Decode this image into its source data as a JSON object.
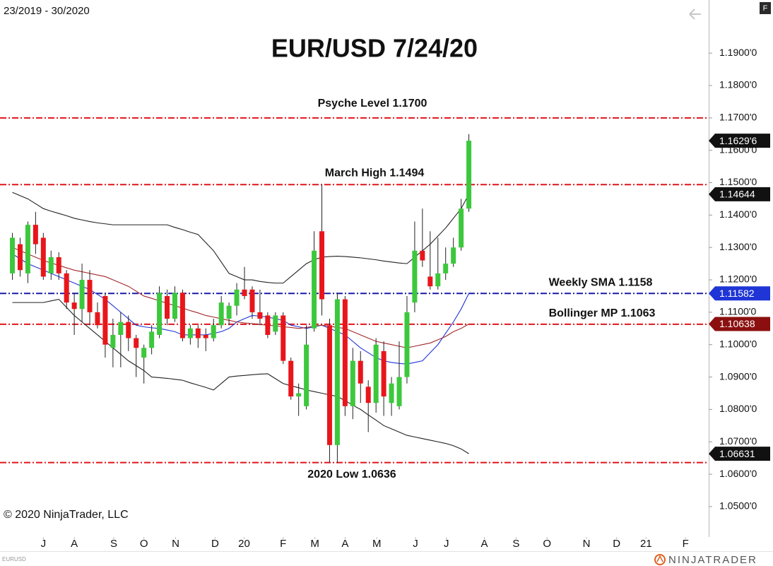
{
  "chart_data": {
    "type": "candlestick",
    "title": "EUR/USD 7/24/20",
    "range_label": "23/2019 - 30/2020",
    "copyright": "© 2020 NinjaTrader, LLC",
    "instrument": "EURUSD",
    "brand": "NINJATRADER",
    "panel_button": "F",
    "up_color": "#3cc83c",
    "down_color": "#e8161b",
    "xlim": [
      -1.6,
      90
    ],
    "xticks": [
      {
        "value": 4.0,
        "label": "J"
      },
      {
        "value": 8.0,
        "label": "A"
      },
      {
        "value": 13.1,
        "label": "S"
      },
      {
        "value": 17.0,
        "label": "O"
      },
      {
        "value": 21.1,
        "label": "N"
      },
      {
        "value": 26.2,
        "label": "D"
      },
      {
        "value": 29.95,
        "label": "20"
      },
      {
        "value": 35.0,
        "label": "F"
      },
      {
        "value": 39.1,
        "label": "M"
      },
      {
        "value": 43.0,
        "label": "A"
      },
      {
        "value": 47.1,
        "label": "M"
      },
      {
        "value": 52.1,
        "label": "J"
      },
      {
        "value": 56.1,
        "label": "J"
      },
      {
        "value": 61.0,
        "label": "A"
      },
      {
        "value": 65.1,
        "label": "S"
      },
      {
        "value": 69.1,
        "label": "O"
      },
      {
        "value": 74.2,
        "label": "N"
      },
      {
        "value": 78.1,
        "label": "D"
      },
      {
        "value": 81.9,
        "label": "21"
      },
      {
        "value": 87.0,
        "label": "F"
      }
    ],
    "ylim": [
      1.0406,
      1.2064
    ],
    "yticks": [
      {
        "value": 1.05,
        "label": "1.0500'0"
      },
      {
        "value": 1.06,
        "label": "1.0600'0"
      },
      {
        "value": 1.07,
        "label": "1.0700'0"
      },
      {
        "value": 1.08,
        "label": "1.0800'0"
      },
      {
        "value": 1.09,
        "label": "1.0900'0"
      },
      {
        "value": 1.1,
        "label": "1.1000'0"
      },
      {
        "value": 1.11,
        "label": "1.1100'0"
      },
      {
        "value": 1.12,
        "label": "1.1200'0"
      },
      {
        "value": 1.13,
        "label": "1.1300'0"
      },
      {
        "value": 1.14,
        "label": "1.1400'0"
      },
      {
        "value": 1.15,
        "label": "1.1500'0"
      },
      {
        "value": 1.16,
        "label": "1.1600'0"
      },
      {
        "value": 1.17,
        "label": "1.1700'0"
      },
      {
        "value": 1.18,
        "label": "1.1800'0"
      },
      {
        "value": 1.19,
        "label": "1.1900'0"
      }
    ],
    "ohlc": {
      "open": [
        1.122,
        1.131,
        1.122,
        1.137,
        1.133,
        1.122,
        1.127,
        1.122,
        1.113,
        1.111,
        1.12,
        1.11,
        1.115,
        1.099,
        1.103,
        1.107,
        1.102,
        1.096,
        1.099,
        1.103,
        1.115,
        1.108,
        1.116,
        1.102,
        1.105,
        1.103,
        1.102,
        1.106,
        1.108,
        1.112,
        1.117,
        1.117,
        1.11,
        1.109,
        1.104,
        1.109,
        1.095,
        1.084,
        1.081,
        1.105,
        1.135,
        1.106,
        1.069,
        1.114,
        1.081,
        1.095,
        1.087,
        1.082,
        1.098,
        1.082,
        1.081,
        1.09,
        1.113,
        1.129,
        1.121,
        1.118,
        1.122,
        1.125,
        1.13,
        1.142
      ],
      "high": [
        1.1345,
        1.133,
        1.138,
        1.141,
        1.1345,
        1.129,
        1.1285,
        1.123,
        1.116,
        1.125,
        1.123,
        1.113,
        1.116,
        1.108,
        1.11,
        1.109,
        1.103,
        1.1,
        1.106,
        1.118,
        1.117,
        1.118,
        1.117,
        1.106,
        1.106,
        1.105,
        1.108,
        1.115,
        1.113,
        1.119,
        1.124,
        1.118,
        1.117,
        1.11,
        1.11,
        1.11,
        1.096,
        1.088,
        1.106,
        1.135,
        1.1494,
        1.108,
        1.116,
        1.115,
        1.099,
        1.098,
        1.089,
        1.102,
        1.101,
        1.09,
        1.101,
        1.115,
        1.138,
        1.142,
        1.135,
        1.133,
        1.13,
        1.133,
        1.145,
        1.165
      ],
      "low": [
        1.12,
        1.121,
        1.119,
        1.128,
        1.12,
        1.12,
        1.12,
        1.111,
        1.103,
        1.107,
        1.106,
        1.105,
        1.096,
        1.093,
        1.093,
        1.098,
        1.09,
        1.088,
        1.097,
        1.102,
        1.106,
        1.107,
        1.101,
        1.1,
        1.099,
        1.098,
        1.101,
        1.105,
        1.106,
        1.109,
        1.114,
        1.108,
        1.106,
        1.102,
        1.103,
        1.094,
        1.083,
        1.078,
        1.08,
        1.104,
        1.109,
        1.0636,
        1.0636,
        1.078,
        1.077,
        1.082,
        1.073,
        1.079,
        1.078,
        1.078,
        1.08,
        1.088,
        1.11,
        1.124,
        1.117,
        1.117,
        1.12,
        1.124,
        1.129,
        1.141
      ],
      "close": [
        1.133,
        1.123,
        1.137,
        1.131,
        1.121,
        1.127,
        1.122,
        1.113,
        1.111,
        1.12,
        1.11,
        1.106,
        1.1,
        1.103,
        1.107,
        1.102,
        1.099,
        1.099,
        1.104,
        1.116,
        1.108,
        1.116,
        1.102,
        1.105,
        1.102,
        1.102,
        1.106,
        1.113,
        1.112,
        1.117,
        1.115,
        1.11,
        1.108,
        1.103,
        1.109,
        1.095,
        1.084,
        1.085,
        1.1,
        1.129,
        1.114,
        1.069,
        1.114,
        1.081,
        1.095,
        1.088,
        1.082,
        1.1,
        1.084,
        1.088,
        1.09,
        1.11,
        1.129,
        1.126,
        1.118,
        1.122,
        1.125,
        1.13,
        1.142,
        1.16296
      ]
    },
    "indicators": [
      {
        "color": "#222222",
        "values": [
          1.147,
          1.146,
          1.145,
          1.1435,
          1.142,
          1.1412,
          1.1405,
          1.1398,
          1.139,
          1.1385,
          1.138,
          1.1376,
          1.1373,
          1.137,
          1.137,
          1.137,
          1.137,
          1.137,
          1.137,
          1.137,
          1.137,
          1.1362,
          1.1355,
          1.1347,
          1.134,
          1.1315,
          1.129,
          1.1255,
          1.122,
          1.121,
          1.12,
          1.12,
          1.1195,
          1.1192,
          1.119,
          1.119,
          1.121,
          1.123,
          1.125,
          1.1262,
          1.127,
          1.1272,
          1.1273,
          1.1272,
          1.127,
          1.1268,
          1.1265,
          1.1262,
          1.1258,
          1.1255,
          1.1252,
          1.125,
          1.127,
          1.129,
          1.131,
          1.1335,
          1.136,
          1.139,
          1.142,
          1.14644
        ]
      },
      {
        "color": "#222222",
        "values": [
          1.113,
          1.113,
          1.113,
          1.113,
          1.113,
          1.1135,
          1.114,
          1.1115,
          1.109,
          1.107,
          1.105,
          1.103,
          1.101,
          1.099,
          1.097,
          1.095,
          1.0935,
          1.092,
          1.09,
          1.0898,
          1.0896,
          1.0893,
          1.089,
          1.0882,
          1.0875,
          1.0868,
          1.086,
          1.088,
          1.09,
          1.0903,
          1.0905,
          1.0907,
          1.0909,
          1.091,
          1.0895,
          1.088,
          1.0873,
          1.0867,
          1.086,
          1.0855,
          1.085,
          1.0845,
          1.084,
          1.0827,
          1.0813,
          1.08,
          1.0783,
          1.0767,
          1.075,
          1.074,
          1.073,
          1.072,
          1.0715,
          1.071,
          1.0705,
          1.07,
          1.0695,
          1.0688,
          1.0678,
          1.06631
        ]
      },
      {
        "color": "#1f35d6",
        "values": [
          1.128,
          1.1265,
          1.125,
          1.124,
          1.123,
          1.122,
          1.121,
          1.12,
          1.119,
          1.118,
          1.117,
          1.1155,
          1.114,
          1.112,
          1.11,
          1.108,
          1.106,
          1.1055,
          1.1052,
          1.105,
          1.1045,
          1.104,
          1.103,
          1.103,
          1.103,
          1.103,
          1.1035,
          1.104,
          1.105,
          1.107,
          1.108,
          1.109,
          1.1088,
          1.1085,
          1.108,
          1.1075,
          1.106,
          1.1055,
          1.105,
          1.1055,
          1.106,
          1.105,
          1.104,
          1.103,
          1.101,
          1.099,
          1.0975,
          1.096,
          1.095,
          1.0945,
          1.0942,
          1.094,
          1.0945,
          1.095,
          1.0975,
          1.1,
          1.1035,
          1.107,
          1.111,
          1.11582
        ]
      },
      {
        "color": "#a0282a",
        "values": [
          1.13,
          1.129,
          1.128,
          1.127,
          1.126,
          1.1252,
          1.1245,
          1.1237,
          1.123,
          1.1225,
          1.122,
          1.1215,
          1.121,
          1.12,
          1.119,
          1.118,
          1.1165,
          1.115,
          1.1143,
          1.1135,
          1.1128,
          1.112,
          1.1113,
          1.1105,
          1.1098,
          1.109,
          1.1085,
          1.108,
          1.1075,
          1.107,
          1.1067,
          1.1065,
          1.1062,
          1.106,
          1.1058,
          1.1055,
          1.1053,
          1.105,
          1.1053,
          1.1057,
          1.106,
          1.1057,
          1.1053,
          1.105,
          1.104,
          1.103,
          1.102,
          1.101,
          1.1005,
          1.1,
          1.0995,
          1.099,
          1.0995,
          1.1,
          1.1005,
          1.1015,
          1.1025,
          1.104,
          1.105,
          1.10638
        ]
      }
    ],
    "levels": [
      {
        "value": 1.17,
        "label": "Psyche Level 1.1700",
        "color": "#e0141c"
      },
      {
        "value": 1.1494,
        "label": "March High 1.1494",
        "color": "#e0141c"
      },
      {
        "value": 1.1158,
        "label": "Weekly SMA 1.1158",
        "color": "#1a1aa8"
      },
      {
        "value": 1.1063,
        "label": "Bollinger MP 1.1063",
        "color": "#e0141c"
      },
      {
        "value": 1.0636,
        "label": "2020 Low 1.0636",
        "color": "#e0141c"
      }
    ],
    "price_markers": [
      {
        "value": 1.16296,
        "label": "1.1629'6",
        "color": "#111111"
      },
      {
        "value": 1.14644,
        "label": "1.14644",
        "color": "#111111"
      },
      {
        "value": 1.11582,
        "label": "1.11582",
        "color": "#1f35d6"
      },
      {
        "value": 1.10638,
        "label": "1.10638",
        "color": "#8b0f0f"
      },
      {
        "value": 1.06631,
        "label": "1.06631",
        "color": "#111111"
      }
    ]
  }
}
